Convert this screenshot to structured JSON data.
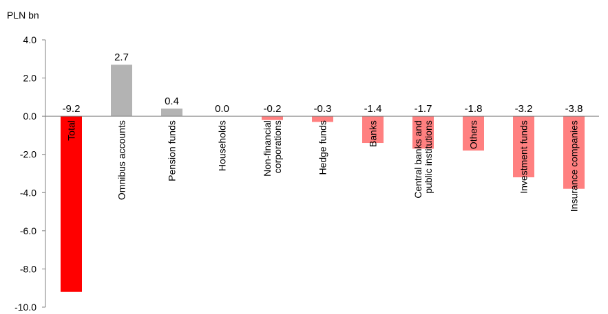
{
  "chart_data": {
    "type": "bar",
    "unit_label": "PLN bn",
    "ylim": [
      -10.0,
      4.0
    ],
    "yticks": [
      "4.0",
      "2.0",
      "0.0",
      "-2.0",
      "-4.0",
      "-6.0",
      "-8.0",
      "-10.0"
    ],
    "ytick_values": [
      4,
      2,
      0,
      -2,
      -4,
      -6,
      -8,
      -10
    ],
    "categories": [
      [
        "Total"
      ],
      [
        "Omnibus accounts"
      ],
      [
        "Pension funds"
      ],
      [
        "Households"
      ],
      [
        "Non-financial",
        "corporations"
      ],
      [
        "Hedge funds"
      ],
      [
        "Banks"
      ],
      [
        "Central banks and",
        "public institutions"
      ],
      [
        "Others"
      ],
      [
        "Investment funds"
      ],
      [
        "Insurance companies"
      ]
    ],
    "values": [
      -9.2,
      2.7,
      0.4,
      0.0,
      -0.2,
      -0.3,
      -1.4,
      -1.7,
      -1.8,
      -3.2,
      -3.8
    ],
    "value_labels": [
      "-9.2",
      "2.7",
      "0.4",
      "0.0",
      "-0.2",
      "-0.3",
      "-1.4",
      "-1.7",
      "-1.8",
      "-3.2",
      "-3.8"
    ],
    "colors": {
      "total": "#ff0000",
      "positive": "#b3b3b3",
      "negative": "#ff8080",
      "axis": "#7f7f7f"
    },
    "grid": false,
    "legend": "none"
  }
}
